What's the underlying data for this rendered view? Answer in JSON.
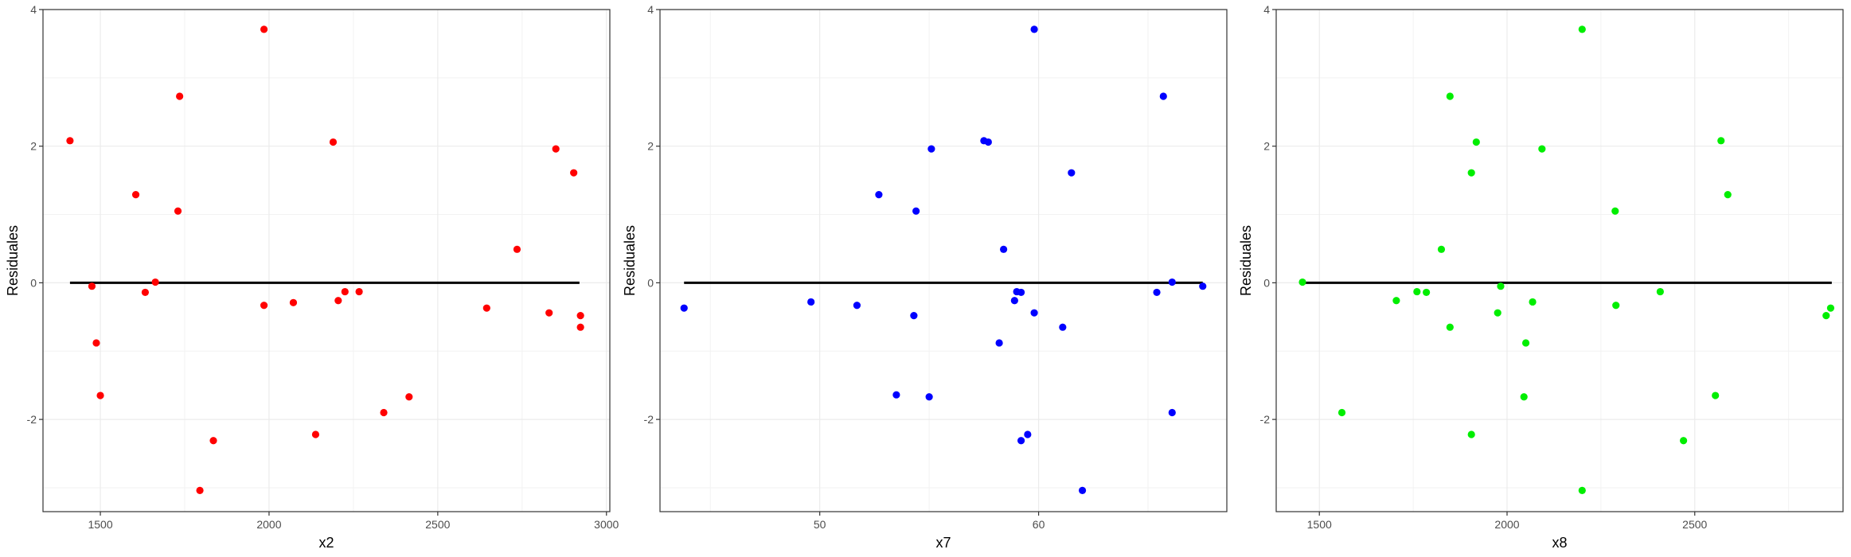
{
  "chart_data": [
    {
      "type": "scatter",
      "xlabel": "x2",
      "ylabel": "Residuales",
      "xlim": [
        1330,
        3010
      ],
      "ylim": [
        -3.35,
        4.0
      ],
      "xticks": [
        1500,
        2000,
        2500,
        3000
      ],
      "xtick_labels": [
        "1500",
        "2000",
        "2500",
        "3000"
      ],
      "yticks": [
        -2,
        0,
        2,
        4
      ],
      "ytick_labels": [
        "-2",
        "0",
        "2",
        "4"
      ],
      "grid": true,
      "point_color": "#ff0000",
      "hline": {
        "y": 0,
        "x_from": 1410,
        "x_to": 2920,
        "color": "#000000"
      },
      "points": [
        {
          "x": 1410,
          "y": 2.08
        },
        {
          "x": 1475,
          "y": -0.05
        },
        {
          "x": 1488,
          "y": -0.88
        },
        {
          "x": 1500,
          "y": -1.65
        },
        {
          "x": 1605,
          "y": 1.29
        },
        {
          "x": 1633,
          "y": -0.14
        },
        {
          "x": 1663,
          "y": 0.01
        },
        {
          "x": 1730,
          "y": 1.05
        },
        {
          "x": 1735,
          "y": 2.73
        },
        {
          "x": 1795,
          "y": -3.04
        },
        {
          "x": 1835,
          "y": -2.31
        },
        {
          "x": 1985,
          "y": 3.71
        },
        {
          "x": 1985,
          "y": -0.33
        },
        {
          "x": 2072,
          "y": -0.29
        },
        {
          "x": 2138,
          "y": -2.22
        },
        {
          "x": 2190,
          "y": 2.06
        },
        {
          "x": 2205,
          "y": -0.26
        },
        {
          "x": 2225,
          "y": -0.13
        },
        {
          "x": 2267,
          "y": -0.13
        },
        {
          "x": 2340,
          "y": -1.9
        },
        {
          "x": 2415,
          "y": -1.67
        },
        {
          "x": 2645,
          "y": -0.37
        },
        {
          "x": 2735,
          "y": 0.49
        },
        {
          "x": 2830,
          "y": -0.44
        },
        {
          "x": 2850,
          "y": 1.96
        },
        {
          "x": 2903,
          "y": 1.61
        },
        {
          "x": 2923,
          "y": -0.48
        },
        {
          "x": 2923,
          "y": -0.65
        }
      ]
    },
    {
      "type": "scatter",
      "xlabel": "x7",
      "ylabel": "Residuales",
      "xlim": [
        42.7,
        68.6
      ],
      "ylim": [
        -3.35,
        4.0
      ],
      "xticks": [
        50,
        60
      ],
      "xtick_labels": [
        "50",
        "60"
      ],
      "yticks": [
        -2,
        0,
        2,
        4
      ],
      "ytick_labels": [
        "-2",
        "0",
        "2",
        "4"
      ],
      "grid": true,
      "point_color": "#0000ff",
      "hline": {
        "y": 0,
        "x_from": 43.8,
        "x_to": 67.5,
        "color": "#000000"
      },
      "points": [
        {
          "x": 43.8,
          "y": -0.37
        },
        {
          "x": 49.6,
          "y": -0.28
        },
        {
          "x": 51.7,
          "y": -0.33
        },
        {
          "x": 52.7,
          "y": 1.29
        },
        {
          "x": 53.5,
          "y": -1.64
        },
        {
          "x": 54.3,
          "y": -0.48
        },
        {
          "x": 54.4,
          "y": 1.05
        },
        {
          "x": 55.0,
          "y": -1.67
        },
        {
          "x": 55.1,
          "y": 1.96
        },
        {
          "x": 57.5,
          "y": 2.08
        },
        {
          "x": 57.7,
          "y": 2.06
        },
        {
          "x": 58.2,
          "y": -0.88
        },
        {
          "x": 58.4,
          "y": 0.49
        },
        {
          "x": 58.9,
          "y": -0.26
        },
        {
          "x": 59.0,
          "y": -0.13
        },
        {
          "x": 59.2,
          "y": -0.14
        },
        {
          "x": 59.2,
          "y": -2.31
        },
        {
          "x": 59.5,
          "y": -2.22
        },
        {
          "x": 59.8,
          "y": 3.71
        },
        {
          "x": 59.8,
          "y": -0.44
        },
        {
          "x": 61.1,
          "y": -0.65
        },
        {
          "x": 61.5,
          "y": 1.61
        },
        {
          "x": 62.0,
          "y": -3.04
        },
        {
          "x": 65.4,
          "y": -0.14
        },
        {
          "x": 65.7,
          "y": 2.73
        },
        {
          "x": 66.1,
          "y": 0.01
        },
        {
          "x": 66.1,
          "y": -1.9
        },
        {
          "x": 67.5,
          "y": -0.05
        }
      ]
    },
    {
      "type": "scatter",
      "xlabel": "x8",
      "ylabel": "Residuales",
      "xlim": [
        1385,
        2895
      ],
      "ylim": [
        -3.35,
        4.0
      ],
      "xticks": [
        1500,
        2000,
        2500
      ],
      "xtick_labels": [
        "1500",
        "2000",
        "2500"
      ],
      "yticks": [
        -2,
        0,
        2,
        4
      ],
      "ytick_labels": [
        "-2",
        "0",
        "2",
        "4"
      ],
      "grid": true,
      "point_color": "#00ee00",
      "hline": {
        "y": 0,
        "x_from": 1455,
        "x_to": 2865,
        "color": "#000000"
      },
      "points": [
        {
          "x": 1455,
          "y": 0.01
        },
        {
          "x": 1560,
          "y": -1.9
        },
        {
          "x": 1705,
          "y": -0.26
        },
        {
          "x": 1760,
          "y": -0.13
        },
        {
          "x": 1785,
          "y": -0.14
        },
        {
          "x": 1825,
          "y": 0.49
        },
        {
          "x": 1848,
          "y": 2.73
        },
        {
          "x": 1848,
          "y": -0.65
        },
        {
          "x": 1905,
          "y": 1.61
        },
        {
          "x": 1905,
          "y": -2.22
        },
        {
          "x": 1918,
          "y": 2.06
        },
        {
          "x": 1975,
          "y": -0.44
        },
        {
          "x": 1983,
          "y": -0.05
        },
        {
          "x": 2045,
          "y": -1.67
        },
        {
          "x": 2050,
          "y": -0.88
        },
        {
          "x": 2068,
          "y": -0.28
        },
        {
          "x": 2093,
          "y": 1.96
        },
        {
          "x": 2200,
          "y": 3.71
        },
        {
          "x": 2200,
          "y": -3.04
        },
        {
          "x": 2288,
          "y": 1.05
        },
        {
          "x": 2290,
          "y": -0.33
        },
        {
          "x": 2408,
          "y": -0.13
        },
        {
          "x": 2470,
          "y": -2.31
        },
        {
          "x": 2555,
          "y": -1.65
        },
        {
          "x": 2570,
          "y": 2.08
        },
        {
          "x": 2588,
          "y": 1.29
        },
        {
          "x": 2850,
          "y": -0.48
        },
        {
          "x": 2862,
          "y": -0.37
        }
      ]
    }
  ]
}
